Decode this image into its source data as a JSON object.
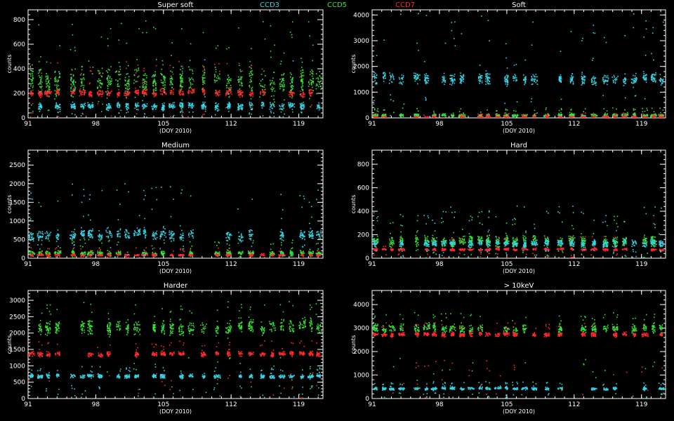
{
  "legend": [
    {
      "label": "CCD3",
      "color": "#33d6e6"
    },
    {
      "label": "CCD5",
      "color": "#33e633"
    },
    {
      "label": "CCD7",
      "color": "#ff2a2a"
    }
  ],
  "chart_data": [
    {
      "type": "scatter",
      "title": "Super soft",
      "xlabel": "(DOY 2010)",
      "ylabel": "counts",
      "xlim": [
        91,
        121.5
      ],
      "ylim": [
        0,
        880
      ],
      "xticks": [
        91,
        98,
        105,
        112,
        119
      ],
      "yticks": [
        0,
        200,
        400,
        600,
        800
      ],
      "series": [
        {
          "name": "CCD3",
          "color": "#33d6e6",
          "level": 100,
          "spread": 40,
          "spikes": 380
        },
        {
          "name": "CCD5",
          "color": "#33e633",
          "level": 300,
          "spread": 140,
          "spikes": 500
        },
        {
          "name": "CCD7",
          "color": "#ff2a2a",
          "level": 210,
          "spread": 40,
          "spikes": 260
        }
      ]
    },
    {
      "type": "scatter",
      "title": "Soft",
      "xlabel": "(DOY 2010)",
      "ylabel": "counts",
      "xlim": [
        91,
        121.5
      ],
      "ylim": [
        0,
        4200
      ],
      "xticks": [
        91,
        98,
        105,
        112,
        119
      ],
      "yticks": [
        0,
        1000,
        2000,
        3000,
        4000
      ],
      "series": [
        {
          "name": "CCD3",
          "color": "#33d6e6",
          "level": 1550,
          "spread": 300,
          "spikes": 2600
        },
        {
          "name": "CCD5",
          "color": "#33e633",
          "level": 120,
          "spread": 80,
          "spikes": 300
        },
        {
          "name": "CCD7",
          "color": "#ff2a2a",
          "level": 60,
          "spread": 40,
          "spikes": 150
        }
      ]
    },
    {
      "type": "scatter",
      "title": "Medium",
      "xlabel": "(DOY 2010)",
      "ylabel": "counts",
      "xlim": [
        91,
        121.5
      ],
      "ylim": [
        0,
        2900
      ],
      "xticks": [
        91,
        98,
        105,
        112,
        119
      ],
      "yticks": [
        0,
        500,
        1000,
        1500,
        2000,
        2500
      ],
      "series": [
        {
          "name": "CCD3",
          "color": "#33d6e6",
          "level": 650,
          "spread": 200,
          "spikes": 1400
        },
        {
          "name": "CCD5",
          "color": "#33e633",
          "level": 150,
          "spread": 80,
          "spikes": 400
        },
        {
          "name": "CCD7",
          "color": "#ff2a2a",
          "level": 100,
          "spread": 30,
          "spikes": 200
        }
      ]
    },
    {
      "type": "scatter",
      "title": "Hard",
      "xlabel": "(DOY 2010)",
      "ylabel": "counts",
      "xlim": [
        91,
        121.5
      ],
      "ylim": [
        0,
        920
      ],
      "xticks": [
        91,
        98,
        105,
        112,
        119
      ],
      "yticks": [
        0,
        200,
        400,
        600,
        800
      ],
      "series": [
        {
          "name": "CCD3",
          "color": "#33d6e6",
          "level": 130,
          "spread": 40,
          "spikes": 320
        },
        {
          "name": "CCD5",
          "color": "#33e633",
          "level": 150,
          "spread": 60,
          "spikes": 250
        },
        {
          "name": "CCD7",
          "color": "#ff2a2a",
          "level": 80,
          "spread": 15,
          "spikes": 120
        }
      ]
    },
    {
      "type": "scatter",
      "title": "Harder",
      "xlabel": "(DOY 2010)",
      "ylabel": "counts",
      "xlim": [
        91,
        121.5
      ],
      "ylim": [
        0,
        3300
      ],
      "xticks": [
        91,
        98,
        105,
        112,
        119
      ],
      "yticks": [
        0,
        500,
        1000,
        1500,
        2000,
        2500,
        3000
      ],
      "series": [
        {
          "name": "CCD3",
          "color": "#33d6e6",
          "level": 700,
          "spread": 80,
          "spikes": 300
        },
        {
          "name": "CCD5",
          "color": "#33e633",
          "level": 2200,
          "spread": 300,
          "spikes": 800
        },
        {
          "name": "CCD7",
          "color": "#ff2a2a",
          "level": 1380,
          "spread": 100,
          "spikes": 400
        }
      ]
    },
    {
      "type": "scatter",
      "title": "> 10keV",
      "xlabel": "(DOY 2010)",
      "ylabel": "counts",
      "xlim": [
        91,
        121.5
      ],
      "ylim": [
        0,
        4600
      ],
      "xticks": [
        91,
        98,
        105,
        112,
        119
      ],
      "yticks": [
        0,
        1000,
        2000,
        3000,
        4000
      ],
      "series": [
        {
          "name": "CCD3",
          "color": "#33d6e6",
          "level": 450,
          "spread": 80,
          "spikes": 300
        },
        {
          "name": "CCD5",
          "color": "#33e633",
          "level": 3000,
          "spread": 250,
          "spikes": 700
        },
        {
          "name": "CCD7",
          "color": "#ff2a2a",
          "level": 2750,
          "spread": 120,
          "spikes": 500
        }
      ]
    }
  ]
}
